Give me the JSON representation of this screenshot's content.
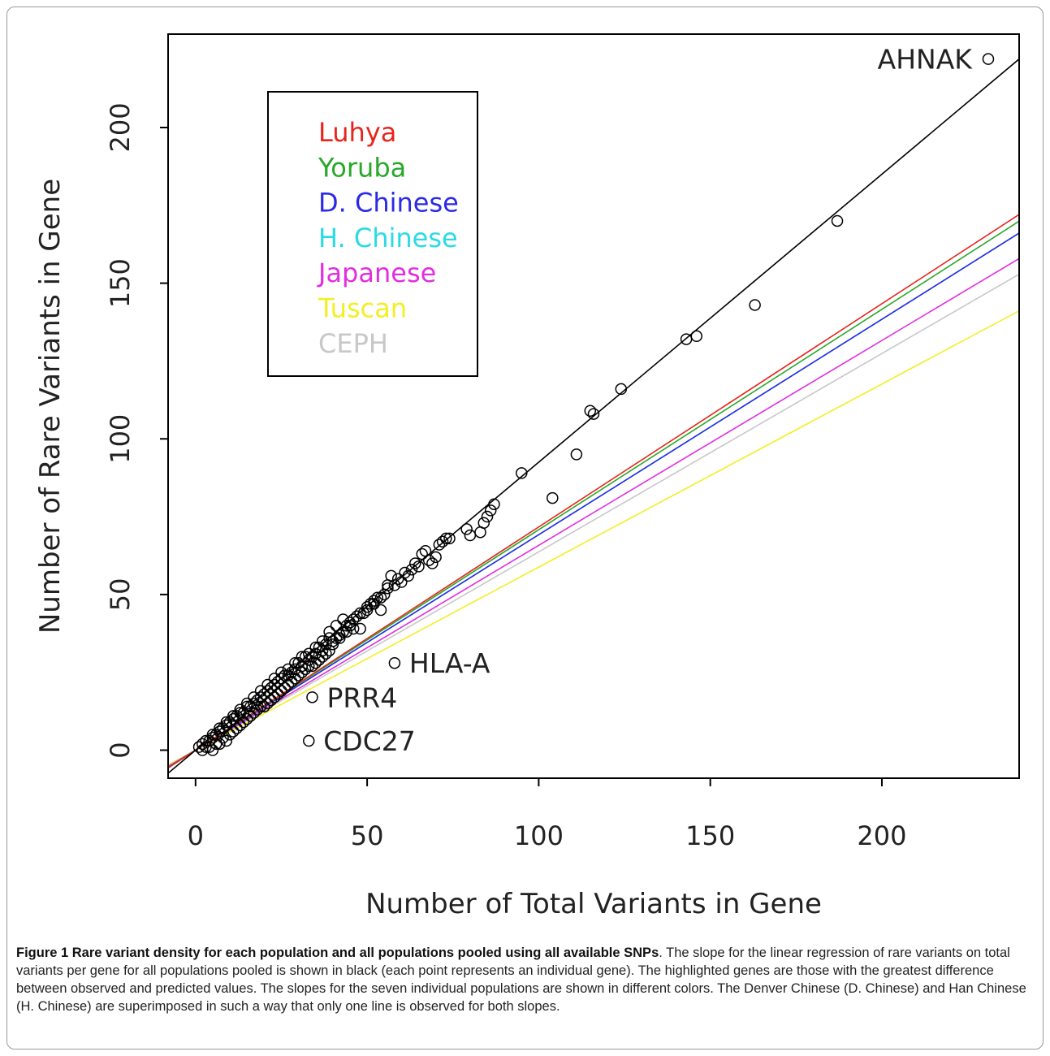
{
  "chart_data": {
    "type": "scatter",
    "xlabel": "Number of Total Variants in Gene",
    "ylabel": "Number of Rare Variants in Gene",
    "xlim": [
      -8,
      240
    ],
    "ylim": [
      -9,
      230
    ],
    "xticks": [
      0,
      50,
      100,
      150,
      200
    ],
    "yticks": [
      0,
      50,
      100,
      150,
      200
    ],
    "legend": {
      "placement": "top-left",
      "entries": [
        {
          "label": "Luhya",
          "color": "#e8251d"
        },
        {
          "label": "Yoruba",
          "color": "#27a828"
        },
        {
          "label": "D. Chinese",
          "color": "#2a2ae6"
        },
        {
          "label": "H. Chinese",
          "color": "#29dbe5"
        },
        {
          "label": "Japanese",
          "color": "#e12ee0"
        },
        {
          "label": "Tuscan",
          "color": "#f2ef23"
        },
        {
          "label": "CEPH",
          "color": "#c8c8c8"
        }
      ]
    },
    "regression_lines": [
      {
        "population": "all pooled",
        "color": "#000000",
        "slope": 0.925,
        "intercept": 0
      },
      {
        "population": "Luhya",
        "color": "#e8251d",
        "slope": 0.717,
        "intercept": 0
      },
      {
        "population": "Yoruba",
        "color": "#27a828",
        "slope": 0.708,
        "intercept": 0
      },
      {
        "population": "D. Chinese",
        "color": "#2a2ae6",
        "slope": 0.692,
        "intercept": 0
      },
      {
        "population": "H. Chinese",
        "color": "#29dbe5",
        "slope": 0.692,
        "intercept": 0
      },
      {
        "population": "Japanese",
        "color": "#e12ee0",
        "slope": 0.658,
        "intercept": 0
      },
      {
        "population": "CEPH",
        "color": "#c8c8c8",
        "slope": 0.637,
        "intercept": 0
      },
      {
        "population": "Tuscan",
        "color": "#f2ef23",
        "slope": 0.588,
        "intercept": 0
      }
    ],
    "labeled_points": [
      {
        "label": "AHNAK",
        "x": 231,
        "y": 222
      },
      {
        "label": "HLA-A",
        "x": 58,
        "y": 28
      },
      {
        "label": "PRR4",
        "x": 34,
        "y": 17
      },
      {
        "label": "CDC27",
        "x": 33,
        "y": 3
      }
    ],
    "points": [
      [
        187,
        170
      ],
      [
        163,
        143
      ],
      [
        146,
        133
      ],
      [
        143,
        132
      ],
      [
        124,
        116
      ],
      [
        116,
        108
      ],
      [
        115,
        109
      ],
      [
        111,
        95
      ],
      [
        104,
        81
      ],
      [
        95,
        89
      ],
      [
        87,
        79
      ],
      [
        86,
        77
      ],
      [
        85,
        75
      ],
      [
        84,
        73
      ],
      [
        83,
        70
      ],
      [
        80,
        69
      ],
      [
        79,
        71
      ],
      [
        73,
        68
      ],
      [
        72,
        67
      ],
      [
        71,
        66
      ],
      [
        70,
        62
      ],
      [
        69,
        60
      ],
      [
        68,
        61
      ],
      [
        66,
        63
      ],
      [
        65,
        59
      ],
      [
        64,
        60
      ],
      [
        63,
        58
      ],
      [
        62,
        56
      ],
      [
        60,
        54
      ],
      [
        59,
        55
      ],
      [
        58,
        53
      ],
      [
        57,
        56
      ],
      [
        56,
        52
      ],
      [
        55,
        50
      ],
      [
        54,
        49
      ],
      [
        52,
        48
      ],
      [
        51,
        47
      ],
      [
        50,
        46
      ],
      [
        49,
        44
      ],
      [
        48,
        44
      ],
      [
        47,
        43
      ],
      [
        46,
        42
      ],
      [
        45,
        41
      ],
      [
        44,
        40
      ],
      [
        43,
        38
      ],
      [
        42,
        37
      ],
      [
        41,
        36
      ],
      [
        40,
        35
      ],
      [
        39,
        36
      ],
      [
        38,
        34
      ],
      [
        37,
        32
      ],
      [
        36,
        33
      ],
      [
        35,
        31
      ],
      [
        34,
        30
      ],
      [
        33,
        29
      ],
      [
        32,
        30
      ],
      [
        31,
        27
      ],
      [
        30,
        28
      ],
      [
        29,
        26
      ],
      [
        28,
        25
      ],
      [
        27,
        24
      ],
      [
        26,
        24
      ],
      [
        25,
        23
      ],
      [
        24,
        22
      ],
      [
        23,
        21
      ],
      [
        22,
        20
      ],
      [
        21,
        19
      ],
      [
        20,
        18
      ],
      [
        19,
        17
      ],
      [
        18,
        16
      ],
      [
        17,
        15
      ],
      [
        16,
        14
      ],
      [
        15,
        14
      ],
      [
        14,
        12
      ],
      [
        13,
        12
      ],
      [
        12,
        11
      ],
      [
        11,
        10
      ],
      [
        10,
        9
      ],
      [
        9,
        8
      ],
      [
        8,
        7
      ],
      [
        7,
        6
      ],
      [
        6,
        5
      ],
      [
        5,
        4
      ],
      [
        4,
        3
      ],
      [
        3,
        3
      ],
      [
        2,
        2
      ],
      [
        1,
        1
      ],
      [
        2,
        0
      ],
      [
        4,
        1
      ],
      [
        6,
        2
      ],
      [
        8,
        4
      ],
      [
        10,
        5
      ],
      [
        12,
        7
      ],
      [
        14,
        9
      ],
      [
        16,
        11
      ],
      [
        18,
        13
      ],
      [
        20,
        14
      ],
      [
        22,
        16
      ],
      [
        24,
        18
      ],
      [
        26,
        20
      ],
      [
        28,
        22
      ],
      [
        30,
        24
      ],
      [
        32,
        26
      ],
      [
        34,
        27
      ],
      [
        36,
        29
      ],
      [
        38,
        31
      ],
      [
        40,
        34
      ],
      [
        42,
        36
      ],
      [
        44,
        38
      ],
      [
        46,
        39
      ],
      [
        48,
        39
      ],
      [
        50,
        45
      ],
      [
        52,
        47
      ],
      [
        41,
        40
      ],
      [
        43,
        42
      ],
      [
        45,
        40
      ],
      [
        39,
        38
      ],
      [
        37,
        35
      ],
      [
        35,
        33
      ],
      [
        33,
        31
      ],
      [
        31,
        30
      ],
      [
        29,
        28
      ],
      [
        27,
        26
      ],
      [
        25,
        25
      ],
      [
        23,
        23
      ],
      [
        21,
        21
      ],
      [
        19,
        19
      ],
      [
        17,
        17
      ],
      [
        15,
        15
      ],
      [
        13,
        13
      ],
      [
        11,
        11
      ],
      [
        9,
        9
      ],
      [
        7,
        7
      ],
      [
        5,
        5
      ],
      [
        3,
        1
      ],
      [
        5,
        0
      ],
      [
        7,
        2
      ],
      [
        9,
        3
      ],
      [
        11,
        6
      ],
      [
        13,
        8
      ],
      [
        15,
        10
      ],
      [
        17,
        12
      ],
      [
        19,
        14
      ],
      [
        21,
        15
      ],
      [
        23,
        17
      ],
      [
        25,
        19
      ],
      [
        27,
        21
      ],
      [
        29,
        23
      ],
      [
        31,
        25
      ],
      [
        33,
        27
      ],
      [
        35,
        28
      ],
      [
        37,
        30
      ],
      [
        39,
        32
      ],
      [
        53,
        49
      ],
      [
        54,
        45
      ],
      [
        56,
        53
      ],
      [
        61,
        57
      ],
      [
        67,
        64
      ],
      [
        74,
        68
      ]
    ]
  },
  "caption": {
    "lead": "Figure 1 Rare variant density for each population and all populations pooled using all available SNPs",
    "body": ". The slope for the linear regression of rare variants on total variants per gene for all populations pooled is shown in black (each point represents an individual gene). The highlighted genes are those with the greatest difference between observed and predicted values. The slopes for the seven individual populations are shown in different colors. The Denver Chinese (D. Chinese) and Han Chinese (H. Chinese) are superimposed in such a way that only one line is observed for both slopes."
  }
}
